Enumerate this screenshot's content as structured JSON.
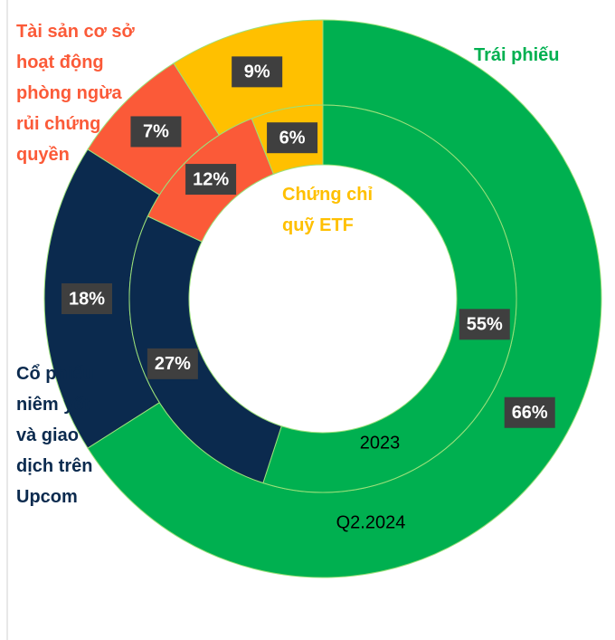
{
  "chart_data": {
    "type": "donut",
    "categories": [
      "Trái phiếu",
      "Cổ phiếu niêm yết và giao dịch trên Upcom",
      "Tài sản cơ sở hoạt động phòng ngừa rủi chứng quyền",
      "Chứng chỉ quỹ ETF"
    ],
    "colors": [
      "#00b050",
      "#0b2a4e",
      "#fb5a38",
      "#ffc000"
    ],
    "series": [
      {
        "name": "Q2.2024",
        "values": [
          66,
          18,
          7,
          9
        ],
        "value_labels": [
          "66%",
          "18%",
          "7%",
          "9%"
        ]
      },
      {
        "name": "2023",
        "values": [
          55,
          27,
          12,
          6
        ],
        "value_labels": [
          "55%",
          "27%",
          "12%",
          "6%"
        ]
      }
    ]
  }
}
